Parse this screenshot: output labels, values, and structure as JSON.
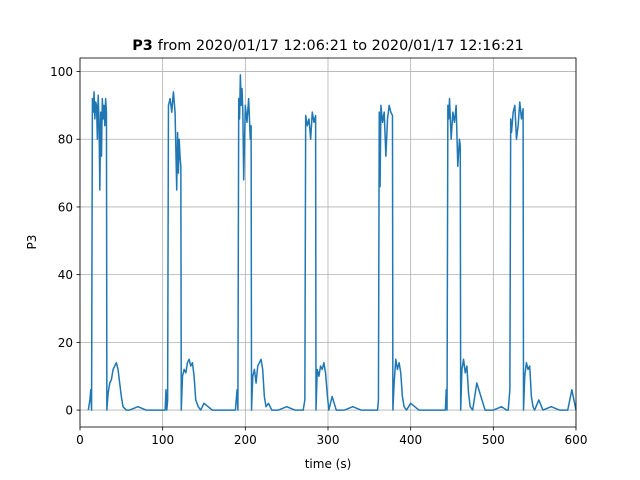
{
  "chart_data": {
    "type": "line",
    "title": [
      "P3",
      "from 2020/01/17 12:06:21 to 2020/01/17 12:16:21"
    ],
    "xlabel": "time (s)",
    "ylabel": "P3",
    "color": "#1f77b4",
    "grid": true,
    "xlim": [
      0,
      600
    ],
    "ylim": [
      -5,
      104
    ],
    "xticks": [
      0,
      100,
      200,
      300,
      400,
      500,
      600
    ],
    "yticks": [
      0,
      20,
      40,
      60,
      80,
      100
    ],
    "x": [
      10,
      12,
      13,
      14,
      15,
      16,
      17,
      18,
      19,
      20,
      21,
      22,
      23,
      24,
      25,
      26,
      27,
      28,
      29,
      30,
      31,
      32,
      32.5,
      34,
      36,
      38,
      40,
      42,
      44,
      46,
      48,
      50,
      52,
      56,
      60,
      70,
      80,
      90,
      100,
      103,
      104,
      105,
      106,
      107,
      109,
      111,
      113,
      115,
      117,
      118,
      119,
      120,
      121,
      122,
      122.5,
      124,
      126,
      128,
      130,
      132,
      134,
      136,
      138,
      140,
      143,
      146,
      150,
      160,
      170,
      180,
      187,
      188,
      190,
      191,
      192,
      193,
      194,
      195,
      196,
      197,
      198,
      200,
      202,
      204,
      206,
      207,
      207.5,
      209,
      211,
      213,
      215,
      217,
      219,
      221,
      223,
      225,
      228,
      232,
      240,
      250,
      260,
      268,
      270,
      272,
      273,
      275,
      277,
      279,
      281,
      283,
      285,
      285.5,
      287,
      289,
      291,
      293,
      295,
      297,
      299,
      301,
      305,
      310,
      320,
      330,
      340,
      350,
      358,
      360,
      361,
      362,
      363,
      364,
      366,
      368,
      370,
      372,
      374,
      376,
      378,
      378.5,
      380,
      382,
      384,
      386,
      388,
      390,
      392,
      395,
      400,
      410,
      420,
      430,
      440,
      442,
      443,
      444,
      445,
      446,
      447,
      449,
      451,
      453,
      455,
      457,
      459,
      460,
      460.5,
      462,
      464,
      466,
      468,
      470,
      472,
      475,
      480,
      490,
      500,
      510,
      516,
      518,
      520,
      521,
      522,
      524,
      526,
      528,
      530,
      532,
      534,
      536,
      536.5,
      538,
      540,
      542,
      544,
      546,
      548,
      550,
      555,
      560,
      570,
      580,
      590,
      595,
      600
    ],
    "values": [
      0,
      3,
      6,
      0,
      92,
      88,
      94,
      86,
      91,
      90,
      80,
      93,
      85,
      65,
      88,
      75,
      92,
      86,
      90,
      84,
      92,
      88,
      0,
      5,
      8,
      9,
      12,
      13,
      14,
      12,
      8,
      4,
      1,
      0,
      0,
      1,
      0,
      0,
      0,
      0,
      6,
      0,
      3,
      90,
      92,
      88,
      94,
      88,
      65,
      82,
      70,
      80,
      75,
      72,
      0,
      10,
      12,
      11,
      14,
      15,
      13,
      14,
      10,
      3,
      1,
      0,
      2,
      0,
      0,
      0,
      0,
      0,
      6,
      0,
      92,
      86,
      99,
      90,
      95,
      88,
      68,
      90,
      85,
      92,
      80,
      84,
      0,
      10,
      12,
      8,
      13,
      14,
      15,
      12,
      4,
      1,
      2,
      0,
      0,
      1,
      0,
      0,
      0,
      3,
      87,
      84,
      86,
      80,
      88,
      85,
      87,
      0,
      12,
      10,
      13,
      12,
      14,
      11,
      5,
      0,
      4,
      0,
      0,
      1,
      0,
      0,
      0,
      0,
      3,
      88,
      66,
      90,
      85,
      88,
      75,
      86,
      90,
      88,
      87,
      0,
      8,
      15,
      12,
      14,
      11,
      4,
      1,
      0,
      2,
      0,
      0,
      0,
      0,
      0,
      6,
      0,
      90,
      86,
      92,
      80,
      88,
      85,
      90,
      72,
      80,
      78,
      0,
      12,
      15,
      11,
      13,
      5,
      1,
      0,
      8,
      0,
      0,
      1,
      0,
      0,
      6,
      86,
      82,
      88,
      90,
      80,
      84,
      91,
      86,
      89,
      0,
      10,
      14,
      12,
      13,
      4,
      1,
      0,
      3,
      0,
      1,
      0,
      0,
      6,
      0
    ]
  }
}
